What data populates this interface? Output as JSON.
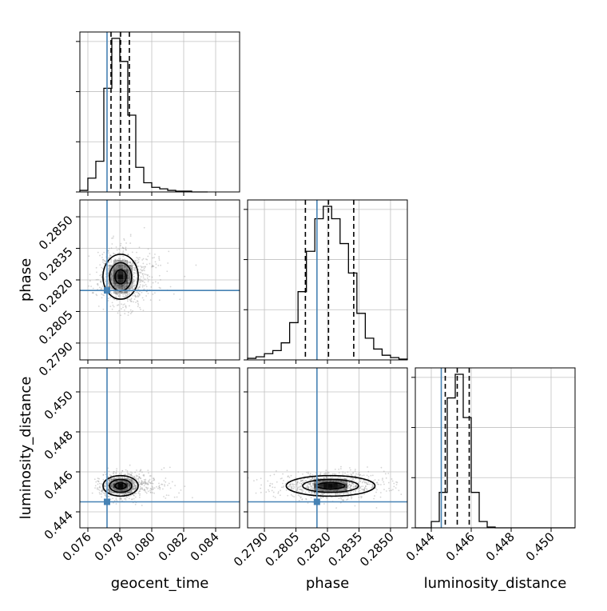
{
  "chart_data": {
    "type": "corner",
    "parameters": [
      "geocent_time",
      "phase",
      "luminosity_distance"
    ],
    "truths": {
      "geocent_time": 0.0772,
      "phase": 0.2815,
      "luminosity_distance": 0.4445
    },
    "colors": {
      "truth": "#4682b4",
      "hist": "#000000",
      "grid": "#c0c0c0",
      "scatter": "#888888",
      "density": "#000000"
    },
    "grid": true,
    "marginals": [
      {
        "parameter": "geocent_time",
        "range": [
          0.0755,
          0.0855
        ],
        "bin_edges": [
          0.0755,
          0.076,
          0.0765,
          0.077,
          0.0775,
          0.078,
          0.0785,
          0.079,
          0.0795,
          0.08,
          0.0805,
          0.081,
          0.0815,
          0.082,
          0.0825,
          0.083,
          0.0835
        ],
        "counts": [
          2,
          18,
          40,
          135,
          200,
          170,
          100,
          32,
          12,
          6,
          4,
          2,
          1,
          1,
          0,
          0
        ],
        "quantiles": [
          0.07745,
          0.07805,
          0.0786
        ]
      },
      {
        "parameter": "phase",
        "range": [
          0.2782,
          0.2858
        ],
        "bin_edges": [
          0.2782,
          0.2786,
          0.279,
          0.2794,
          0.2798,
          0.2802,
          0.2806,
          0.281,
          0.2814,
          0.2818,
          0.2822,
          0.2826,
          0.283,
          0.2834,
          0.2838,
          0.2842,
          0.2846,
          0.285,
          0.2854,
          0.2858
        ],
        "counts": [
          2,
          4,
          8,
          12,
          22,
          48,
          88,
          140,
          182,
          198,
          182,
          150,
          112,
          60,
          28,
          14,
          6,
          3,
          1
        ],
        "quantiles": [
          0.28095,
          0.28205,
          0.28325
        ]
      },
      {
        "parameter": "luminosity_distance",
        "range": [
          0.4432,
          0.4512
        ],
        "bin_edges": [
          0.4432,
          0.4436,
          0.444,
          0.4444,
          0.4448,
          0.4452,
          0.4456,
          0.446,
          0.4464,
          0.4468,
          0.4472,
          0.4476,
          0.448,
          0.4484,
          0.4488,
          0.4492,
          0.4496,
          0.45,
          0.4504,
          0.4508,
          0.4512
        ],
        "counts": [
          0,
          0,
          8,
          45,
          165,
          195,
          140,
          45,
          8,
          1,
          0,
          0,
          0,
          0,
          0,
          0,
          0,
          0,
          0,
          0
        ],
        "quantiles": [
          0.4447,
          0.4453,
          0.4459
        ]
      }
    ],
    "joint": [
      {
        "x": "geocent_time",
        "y": "phase",
        "center": [
          0.07805,
          0.28215
        ],
        "sigma": [
          0.0006,
          0.00058
        ]
      },
      {
        "x": "geocent_time",
        "y": "luminosity_distance",
        "center": [
          0.07805,
          0.4453
        ],
        "sigma": [
          0.0006,
          0.00028
        ]
      },
      {
        "x": "phase",
        "y": "luminosity_distance",
        "center": [
          0.28215,
          0.4453
        ],
        "sigma": [
          0.00115,
          0.00028
        ]
      }
    ],
    "axes": {
      "geocent_time": {
        "ticks": [
          0.076,
          0.078,
          0.08,
          0.082,
          0.084
        ],
        "tick_labels": [
          "0.076",
          "0.078",
          "0.080",
          "0.082",
          "0.084"
        ]
      },
      "phase_x": {
        "ticks": [
          0.279,
          0.2805,
          0.282,
          0.2835,
          0.285
        ],
        "tick_labels": [
          "0.2790",
          "0.2805",
          "0.2820",
          "0.2835",
          "0.2850"
        ]
      },
      "phase_y": {
        "ticks": [
          0.279,
          0.2805,
          0.282,
          0.2835,
          0.285
        ],
        "tick_labels": [
          "0.2790",
          "0.2805",
          "0.2820",
          "0.2835",
          "0.2850"
        ]
      },
      "luminosity_distance_x": {
        "ticks": [
          0.444,
          0.446,
          0.448,
          0.45
        ],
        "tick_labels": [
          "0.444",
          "0.446",
          "0.448",
          "0.450"
        ]
      },
      "luminosity_distance_y": {
        "ticks": [
          0.444,
          0.446,
          0.448,
          0.45
        ],
        "tick_labels": [
          "0.444",
          "0.446",
          "0.448",
          "0.450"
        ]
      }
    },
    "labels": {
      "x_bottom": [
        "geocent_time",
        "phase",
        "luminosity_distance"
      ],
      "y_left": [
        "phase",
        "luminosity_distance"
      ]
    }
  }
}
